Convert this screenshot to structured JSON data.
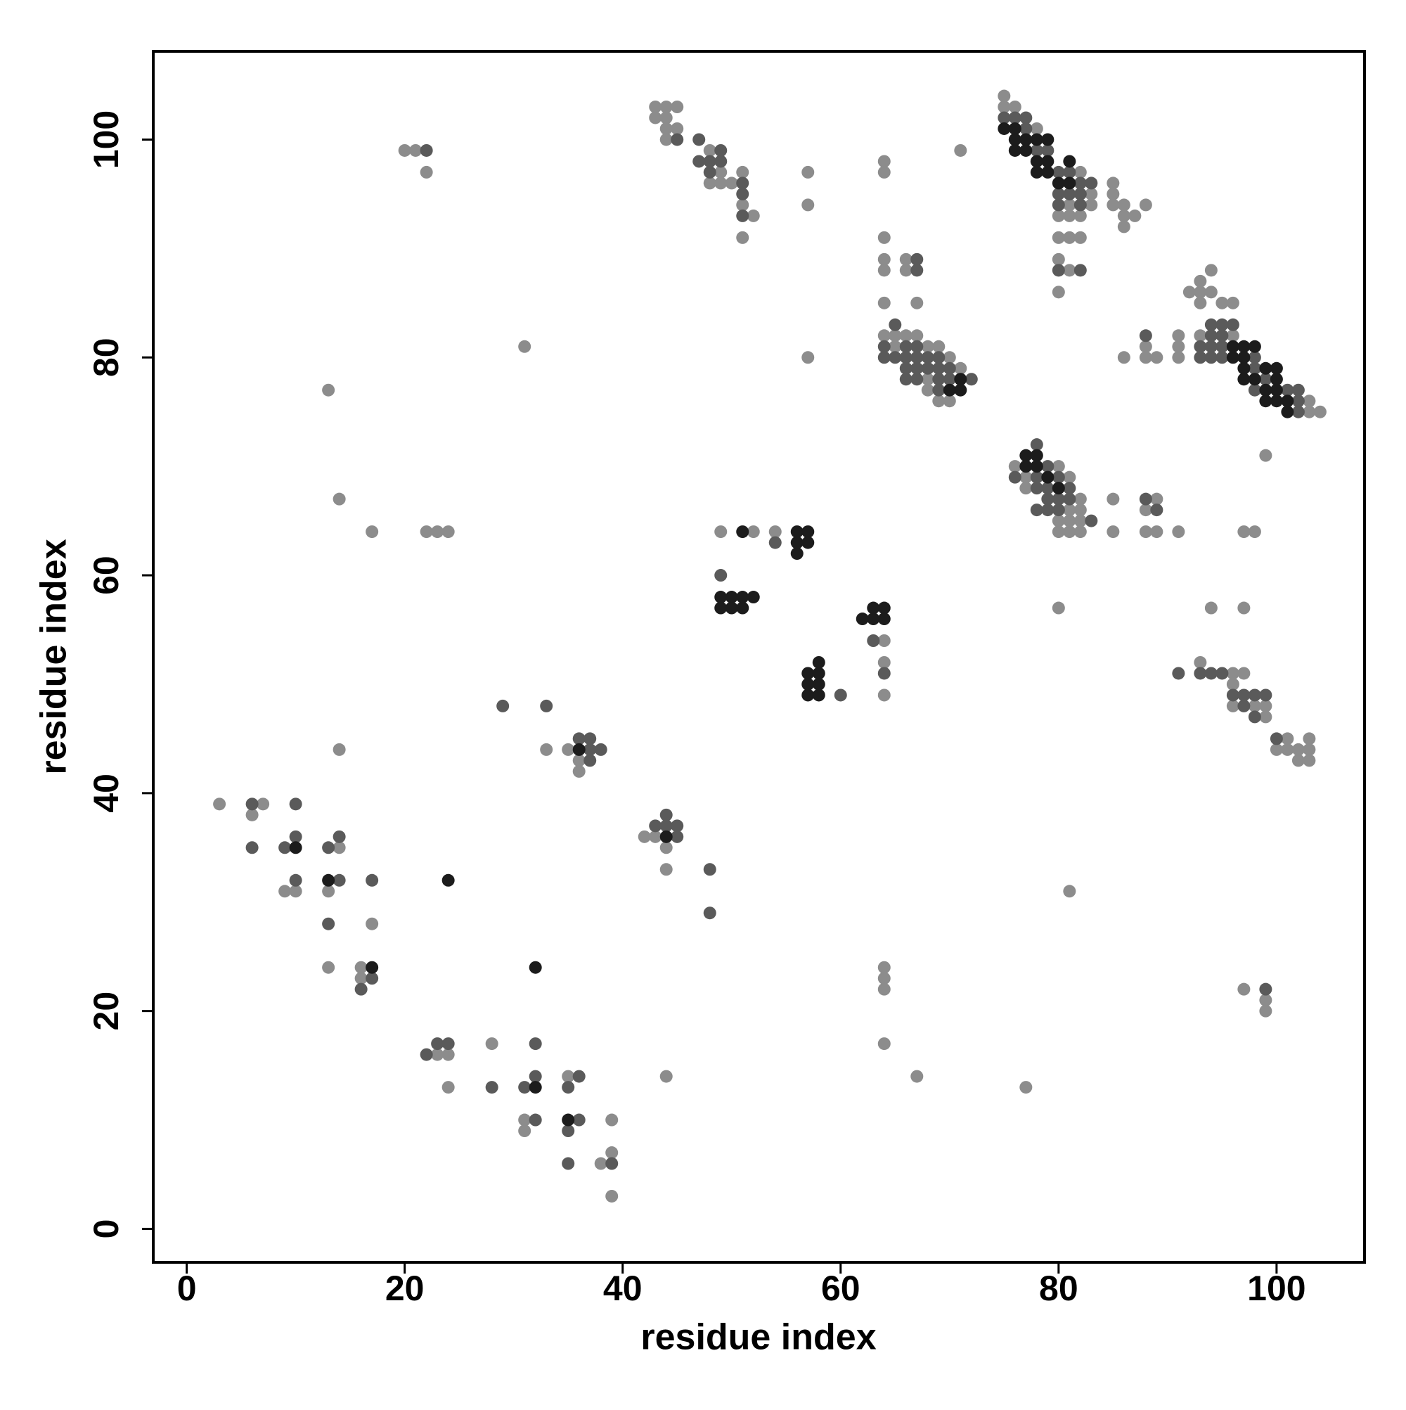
{
  "chart_data": {
    "type": "scatter",
    "xlabel": "residue index",
    "ylabel": "residue index",
    "xlim": [
      -3.07,
      108.07
    ],
    "ylim": [
      -3.07,
      108.1
    ],
    "xticks": [
      0,
      20,
      40,
      60,
      80,
      100
    ],
    "yticks": [
      0,
      20,
      40,
      60,
      80,
      100
    ],
    "grid": false,
    "series": [
      {
        "color": "#8c8c8c",
        "x": [
          3,
          7,
          6,
          14,
          9,
          10,
          13,
          17,
          13,
          16,
          16,
          13,
          14,
          17,
          22,
          23,
          24,
          14,
          20,
          21,
          22,
          31,
          33,
          35,
          36,
          36,
          23,
          24,
          24,
          28,
          35,
          31,
          31,
          39,
          39,
          38,
          39,
          42,
          43,
          44,
          44,
          44,
          49,
          52,
          54,
          64,
          64,
          64,
          64,
          64,
          64,
          64,
          67,
          77,
          81,
          80,
          94,
          97,
          97,
          99,
          99,
          99,
          57,
          57,
          57,
          71,
          43,
          44,
          45,
          43,
          44,
          44,
          45,
          44,
          48,
          49,
          51,
          48,
          49,
          50,
          51,
          52,
          51,
          64,
          64,
          64,
          64,
          64,
          66,
          66,
          64,
          67,
          64,
          65,
          66,
          67,
          65,
          68,
          69,
          70,
          71,
          68,
          68,
          69,
          70,
          75,
          75,
          76,
          78,
          82,
          85,
          83,
          85,
          81,
          83,
          85,
          86,
          88,
          80,
          81,
          82,
          86,
          87,
          86,
          80,
          81,
          82,
          80,
          81,
          80,
          94,
          93,
          92,
          93,
          94,
          93,
          95,
          96,
          91,
          93,
          96,
          88,
          91,
          86,
          88,
          89,
          91,
          103,
          103,
          104,
          76,
          80,
          77,
          81,
          77,
          82,
          85,
          89,
          81,
          82,
          88,
          80,
          81,
          82,
          80,
          81,
          82,
          85,
          88,
          89,
          91,
          97,
          98,
          93,
          96,
          97,
          96,
          96,
          98,
          99,
          99,
          101,
          103,
          100,
          101,
          102,
          103,
          102,
          103
        ],
        "y": [
          39,
          39,
          38,
          35,
          31,
          31,
          31,
          28,
          24,
          24,
          23,
          77,
          67,
          64,
          64,
          64,
          64,
          44,
          99,
          99,
          97,
          81,
          44,
          44,
          43,
          42,
          16,
          16,
          13,
          17,
          14,
          10,
          9,
          10,
          7,
          6,
          3,
          36,
          36,
          35,
          33,
          14,
          64,
          64,
          64,
          54,
          52,
          49,
          24,
          23,
          22,
          17,
          14,
          13,
          31,
          57,
          57,
          57,
          22,
          21,
          20,
          71,
          97,
          94,
          80,
          99,
          103,
          103,
          103,
          102,
          102,
          101,
          101,
          100,
          99,
          97,
          97,
          96,
          96,
          96,
          94,
          93,
          91,
          98,
          97,
          91,
          89,
          88,
          89,
          88,
          85,
          85,
          82,
          82,
          82,
          82,
          81,
          81,
          81,
          80,
          79,
          78,
          77,
          76,
          76,
          104,
          103,
          103,
          101,
          97,
          96,
          95,
          95,
          94,
          94,
          94,
          94,
          94,
          93,
          93,
          93,
          93,
          93,
          92,
          91,
          91,
          91,
          89,
          88,
          86,
          88,
          87,
          86,
          86,
          86,
          85,
          85,
          85,
          82,
          82,
          82,
          81,
          81,
          80,
          80,
          80,
          80,
          76,
          75,
          75,
          70,
          70,
          69,
          69,
          68,
          67,
          67,
          67,
          66,
          66,
          66,
          65,
          65,
          65,
          64,
          64,
          64,
          64,
          64,
          64,
          64,
          64,
          64,
          52,
          51,
          51,
          50,
          48,
          48,
          48,
          47,
          45,
          45,
          44,
          44,
          44,
          44,
          43,
          43
        ]
      },
      {
        "color": "#5a5a5a",
        "x": [
          6,
          10,
          6,
          9,
          10,
          13,
          14,
          10,
          14,
          17,
          13,
          17,
          16,
          22,
          29,
          33,
          36,
          37,
          37,
          38,
          37,
          22,
          23,
          24,
          28,
          32,
          32,
          31,
          36,
          35,
          32,
          36,
          35,
          39,
          35,
          43,
          44,
          44,
          45,
          45,
          48,
          48,
          54,
          49,
          60,
          63,
          64,
          99,
          45,
          47,
          49,
          47,
          48,
          49,
          48,
          51,
          51,
          51,
          67,
          67,
          65,
          64,
          66,
          67,
          64,
          65,
          66,
          67,
          68,
          69,
          66,
          67,
          68,
          69,
          70,
          66,
          67,
          69,
          70,
          72,
          69,
          75,
          76,
          77,
          77,
          78,
          79,
          80,
          81,
          82,
          83,
          80,
          81,
          82,
          80,
          82,
          80,
          82,
          94,
          95,
          96,
          88,
          94,
          95,
          93,
          94,
          95,
          93,
          94,
          95,
          98,
          98,
          99,
          98,
          101,
          102,
          102,
          102,
          78,
          79,
          76,
          78,
          80,
          78,
          79,
          81,
          79,
          80,
          81,
          88,
          78,
          79,
          80,
          89,
          83,
          91,
          93,
          94,
          95,
          96,
          97,
          98,
          99,
          97,
          98,
          100
        ],
        "y": [
          39,
          39,
          35,
          35,
          36,
          35,
          36,
          32,
          32,
          32,
          28,
          23,
          22,
          99,
          48,
          48,
          45,
          45,
          44,
          44,
          43,
          16,
          17,
          17,
          13,
          17,
          14,
          13,
          14,
          13,
          10,
          10,
          9,
          6,
          6,
          37,
          37,
          38,
          37,
          36,
          33,
          29,
          63,
          60,
          49,
          54,
          51,
          22,
          100,
          100,
          99,
          98,
          98,
          98,
          97,
          96,
          95,
          93,
          89,
          88,
          83,
          81,
          81,
          81,
          80,
          80,
          80,
          80,
          80,
          80,
          79,
          79,
          79,
          79,
          79,
          78,
          78,
          78,
          78,
          78,
          77,
          102,
          102,
          102,
          101,
          99,
          99,
          97,
          97,
          96,
          96,
          95,
          95,
          95,
          94,
          94,
          88,
          88,
          83,
          83,
          83,
          82,
          82,
          82,
          81,
          81,
          81,
          80,
          80,
          80,
          80,
          79,
          78,
          77,
          77,
          77,
          76,
          75,
          72,
          70,
          69,
          69,
          69,
          68,
          68,
          68,
          67,
          67,
          67,
          67,
          66,
          66,
          66,
          66,
          65,
          51,
          51,
          51,
          51,
          49,
          49,
          49,
          49,
          48,
          47,
          45
        ]
      },
      {
        "color": "#1c1c1c",
        "x": [
          10,
          13,
          24,
          17,
          36,
          32,
          35,
          32,
          44,
          51,
          56,
          57,
          56,
          57,
          56,
          49,
          50,
          51,
          52,
          49,
          50,
          51,
          57,
          58,
          58,
          57,
          58,
          57,
          58,
          62,
          63,
          64,
          63,
          64,
          71,
          70,
          71,
          75,
          76,
          76,
          77,
          78,
          79,
          76,
          77,
          78,
          79,
          81,
          78,
          79,
          80,
          81,
          96,
          97,
          98,
          96,
          97,
          97,
          99,
          100,
          97,
          98,
          100,
          99,
          100,
          99,
          100,
          101,
          101,
          77,
          78,
          77,
          78,
          79,
          80
        ],
        "y": [
          35,
          32,
          32,
          24,
          44,
          13,
          10,
          24,
          36,
          64,
          64,
          64,
          63,
          63,
          62,
          58,
          58,
          58,
          58,
          57,
          57,
          57,
          51,
          52,
          51,
          50,
          50,
          49,
          49,
          56,
          56,
          56,
          57,
          57,
          78,
          77,
          77,
          101,
          101,
          100,
          100,
          100,
          100,
          99,
          99,
          98,
          98,
          98,
          97,
          97,
          96,
          96,
          81,
          81,
          81,
          80,
          80,
          79,
          79,
          79,
          78,
          78,
          78,
          77,
          77,
          76,
          76,
          76,
          75,
          71,
          71,
          70,
          70,
          69,
          68
        ]
      }
    ]
  }
}
